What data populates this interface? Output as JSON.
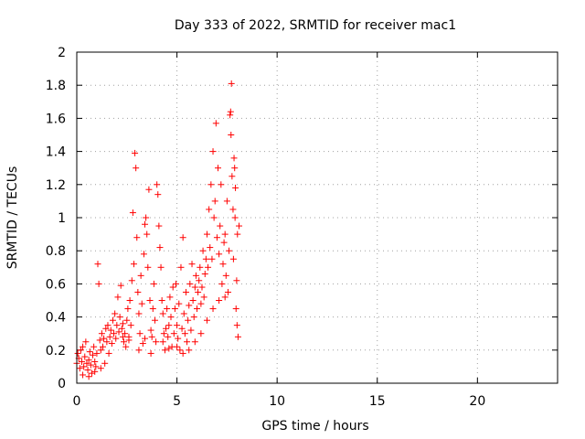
{
  "chart_data": {
    "type": "scatter",
    "title": "Day 333 of 2022, SRMTID for receiver mac1",
    "xlabel": "GPS time / hours",
    "ylabel": "SRMTID / TECUs",
    "xlim": [
      0,
      24
    ],
    "ylim": [
      0,
      2
    ],
    "xticks": [
      0,
      5,
      10,
      15,
      20
    ],
    "yticks": [
      0,
      0.2,
      0.4,
      0.6,
      0.8,
      1,
      1.2,
      1.4,
      1.6,
      1.8,
      2
    ],
    "xtick_labels": [
      "0",
      "5",
      "10",
      "15",
      "20"
    ],
    "ytick_labels": [
      "0",
      "0.2",
      "0.4",
      "0.6",
      "0.8",
      "1",
      "1.2",
      "1.4",
      "1.6",
      "1.8",
      "2"
    ],
    "grid": true,
    "marker": "+",
    "color": "#ff0000",
    "series": [
      {
        "points": [
          [
            0.0,
            0.12
          ],
          [
            0.05,
            0.18
          ],
          [
            0.1,
            0.15
          ],
          [
            0.15,
            0.09
          ],
          [
            0.2,
            0.2
          ],
          [
            0.25,
            0.13
          ],
          [
            0.3,
            0.22
          ],
          [
            0.35,
            0.1
          ],
          [
            0.4,
            0.16
          ],
          [
            0.45,
            0.25
          ],
          [
            0.5,
            0.12
          ],
          [
            0.55,
            0.08
          ],
          [
            0.6,
            0.14
          ],
          [
            0.65,
            0.19
          ],
          [
            0.7,
            0.11
          ],
          [
            0.75,
            0.06
          ],
          [
            0.8,
            0.17
          ],
          [
            0.85,
            0.22
          ],
          [
            0.9,
            0.13
          ],
          [
            0.95,
            0.1
          ],
          [
            1.0,
            0.18
          ],
          [
            1.05,
            0.72
          ],
          [
            1.1,
            0.6
          ],
          [
            1.15,
            0.26
          ],
          [
            1.2,
            0.2
          ],
          [
            1.25,
            0.3
          ],
          [
            1.3,
            0.22
          ],
          [
            1.35,
            0.27
          ],
          [
            1.4,
            0.12
          ],
          [
            1.45,
            0.33
          ],
          [
            1.5,
            0.25
          ],
          [
            1.55,
            0.35
          ],
          [
            1.6,
            0.18
          ],
          [
            1.65,
            0.28
          ],
          [
            1.7,
            0.32
          ],
          [
            1.75,
            0.24
          ],
          [
            1.8,
            0.38
          ],
          [
            1.85,
            0.3
          ],
          [
            1.9,
            0.42
          ],
          [
            1.95,
            0.27
          ],
          [
            2.0,
            0.35
          ],
          [
            2.05,
            0.52
          ],
          [
            2.1,
            0.31
          ],
          [
            2.15,
            0.4
          ],
          [
            2.2,
            0.59
          ],
          [
            2.25,
            0.33
          ],
          [
            2.3,
            0.36
          ],
          [
            2.35,
            0.25
          ],
          [
            2.4,
            0.3
          ],
          [
            2.45,
            0.22
          ],
          [
            2.5,
            0.38
          ],
          [
            2.55,
            0.45
          ],
          [
            2.6,
            0.28
          ],
          [
            2.65,
            0.5
          ],
          [
            2.7,
            0.35
          ],
          [
            2.75,
            0.62
          ],
          [
            2.8,
            1.03
          ],
          [
            2.85,
            0.72
          ],
          [
            2.9,
            1.39
          ],
          [
            2.95,
            1.3
          ],
          [
            3.0,
            0.88
          ],
          [
            3.05,
            0.55
          ],
          [
            3.1,
            0.42
          ],
          [
            3.15,
            0.3
          ],
          [
            3.2,
            0.65
          ],
          [
            3.25,
            0.48
          ],
          [
            3.3,
            0.24
          ],
          [
            3.35,
            0.78
          ],
          [
            3.4,
            0.96
          ],
          [
            3.45,
            1.0
          ],
          [
            3.5,
            0.9
          ],
          [
            3.55,
            0.7
          ],
          [
            3.6,
            1.17
          ],
          [
            3.65,
            0.5
          ],
          [
            3.7,
            0.32
          ],
          [
            3.75,
            0.28
          ],
          [
            3.8,
            0.45
          ],
          [
            3.85,
            0.6
          ],
          [
            3.9,
            0.38
          ],
          [
            3.95,
            0.25
          ],
          [
            4.0,
            1.2
          ],
          [
            4.05,
            1.14
          ],
          [
            4.1,
            0.95
          ],
          [
            4.15,
            0.82
          ],
          [
            4.2,
            0.7
          ],
          [
            4.25,
            0.5
          ],
          [
            4.3,
            0.42
          ],
          [
            4.35,
            0.3
          ],
          [
            4.4,
            0.2
          ],
          [
            4.45,
            0.33
          ],
          [
            4.5,
            0.45
          ],
          [
            4.55,
            0.28
          ],
          [
            4.6,
            0.35
          ],
          [
            4.65,
            0.52
          ],
          [
            4.7,
            0.4
          ],
          [
            4.75,
            0.22
          ],
          [
            4.8,
            0.58
          ],
          [
            4.85,
            0.3
          ],
          [
            4.9,
            0.45
          ],
          [
            4.95,
            0.6
          ],
          [
            5.0,
            0.35
          ],
          [
            5.05,
            0.27
          ],
          [
            5.1,
            0.48
          ],
          [
            5.15,
            0.2
          ],
          [
            5.2,
            0.7
          ],
          [
            5.25,
            0.33
          ],
          [
            5.3,
            0.88
          ],
          [
            5.35,
            0.42
          ],
          [
            5.4,
            0.3
          ],
          [
            5.45,
            0.55
          ],
          [
            5.5,
            0.25
          ],
          [
            5.55,
            0.38
          ],
          [
            5.6,
            0.47
          ],
          [
            5.65,
            0.6
          ],
          [
            5.7,
            0.32
          ],
          [
            5.75,
            0.72
          ],
          [
            5.8,
            0.5
          ],
          [
            5.85,
            0.4
          ],
          [
            5.9,
            0.58
          ],
          [
            5.95,
            0.65
          ],
          [
            6.0,
            0.45
          ],
          [
            6.05,
            0.55
          ],
          [
            6.1,
            0.62
          ],
          [
            6.15,
            0.7
          ],
          [
            6.2,
            0.48
          ],
          [
            6.25,
            0.58
          ],
          [
            6.3,
            0.8
          ],
          [
            6.35,
            0.52
          ],
          [
            6.4,
            0.66
          ],
          [
            6.45,
            0.75
          ],
          [
            6.5,
            0.9
          ],
          [
            6.55,
            0.7
          ],
          [
            6.6,
            1.05
          ],
          [
            6.65,
            0.82
          ],
          [
            6.7,
            1.2
          ],
          [
            6.75,
            0.75
          ],
          [
            6.8,
            1.4
          ],
          [
            6.85,
            1.0
          ],
          [
            6.9,
            1.1
          ],
          [
            6.95,
            1.57
          ],
          [
            7.0,
            0.88
          ],
          [
            7.05,
            1.3
          ],
          [
            7.1,
            0.78
          ],
          [
            7.15,
            0.95
          ],
          [
            7.2,
            1.2
          ],
          [
            7.25,
            0.6
          ],
          [
            7.3,
            0.72
          ],
          [
            7.35,
            0.85
          ],
          [
            7.4,
            0.9
          ],
          [
            7.45,
            0.65
          ],
          [
            7.5,
            1.1
          ],
          [
            7.55,
            0.55
          ],
          [
            7.6,
            0.8
          ],
          [
            7.65,
            1.62
          ],
          [
            7.7,
            1.5
          ],
          [
            7.75,
            1.25
          ],
          [
            7.8,
            1.05
          ],
          [
            7.85,
            1.36
          ],
          [
            7.9,
            1.0
          ],
          [
            7.95,
            0.45
          ],
          [
            8.0,
            0.35
          ],
          [
            8.05,
            0.28
          ],
          [
            8.1,
            0.95
          ],
          [
            7.72,
            1.81
          ],
          [
            7.68,
            1.64
          ],
          [
            7.88,
            1.3
          ],
          [
            7.92,
            1.18
          ],
          [
            7.98,
            0.62
          ],
          [
            8.02,
            0.9
          ],
          [
            7.82,
            0.75
          ],
          [
            0.3,
            0.05
          ],
          [
            0.6,
            0.04
          ],
          [
            0.9,
            0.07
          ],
          [
            1.2,
            0.09
          ],
          [
            2.3,
            0.28
          ],
          [
            2.6,
            0.26
          ],
          [
            3.1,
            0.2
          ],
          [
            3.4,
            0.27
          ],
          [
            3.7,
            0.18
          ],
          [
            4.3,
            0.25
          ],
          [
            4.6,
            0.21
          ],
          [
            5.0,
            0.22
          ],
          [
            5.3,
            0.18
          ],
          [
            5.6,
            0.2
          ],
          [
            5.9,
            0.25
          ],
          [
            6.2,
            0.3
          ],
          [
            6.5,
            0.38
          ],
          [
            6.8,
            0.45
          ],
          [
            7.1,
            0.5
          ],
          [
            7.4,
            0.52
          ]
        ]
      }
    ]
  }
}
